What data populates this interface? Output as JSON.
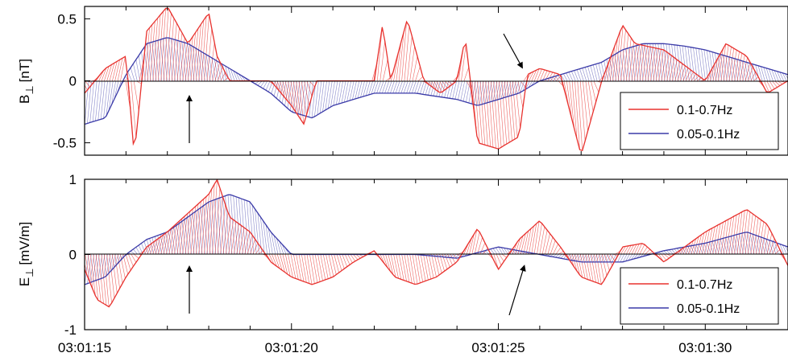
{
  "chart_data": [
    {
      "type": "line",
      "panel": "top",
      "ylabel_main": "B",
      "ylabel_sub": "⊥",
      "ylabel_unit": "[nT]",
      "ylim": [
        -0.6,
        0.6
      ],
      "yticks": [
        "0.5",
        "0",
        "-0.5"
      ],
      "ytick_values": [
        0.5,
        0,
        -0.5
      ],
      "xlim": [
        15,
        32
      ],
      "grid": false,
      "legend_position": "bottom-right",
      "series": [
        {
          "name": "0.1-0.7Hz",
          "color": "#e8322e",
          "x": [
            15.0,
            15.5,
            16.0,
            16.2,
            16.5,
            17.0,
            17.5,
            18.0,
            18.2,
            18.5,
            19.0,
            19.5,
            20.0,
            20.3,
            20.6,
            21.0,
            21.5,
            22.0,
            22.2,
            22.4,
            22.8,
            23.2,
            23.6,
            24.0,
            24.2,
            24.5,
            25.0,
            25.5,
            25.7,
            26.0,
            26.5,
            27.0,
            27.5,
            28.0,
            28.3,
            29.0,
            30.0,
            30.5,
            31.0,
            31.5,
            32.0
          ],
          "values": [
            -0.1,
            0.1,
            0.2,
            -0.6,
            0.4,
            0.6,
            0.3,
            0.55,
            0.2,
            0.0,
            0.0,
            0.0,
            -0.2,
            -0.35,
            0.0,
            0.0,
            0.0,
            0.0,
            0.45,
            0.0,
            0.5,
            0.0,
            -0.1,
            0.0,
            0.35,
            -0.5,
            -0.55,
            -0.45,
            0.05,
            0.1,
            0.05,
            -0.6,
            0.0,
            0.45,
            0.3,
            0.25,
            0.0,
            0.3,
            0.2,
            -0.1,
            0.0
          ]
        },
        {
          "name": "0.05-0.1Hz",
          "color": "#3a3aa8",
          "x": [
            15.0,
            15.5,
            16.0,
            16.5,
            17.0,
            17.5,
            18.0,
            18.5,
            19.0,
            19.5,
            20.0,
            20.5,
            21.0,
            22.0,
            23.0,
            24.0,
            24.5,
            25.0,
            25.5,
            26.0,
            26.5,
            27.0,
            27.5,
            28.0,
            28.5,
            29.0,
            29.5,
            30.0,
            30.5,
            31.0,
            31.5,
            32.0
          ],
          "values": [
            -0.35,
            -0.3,
            0.05,
            0.3,
            0.35,
            0.3,
            0.2,
            0.1,
            0.0,
            -0.1,
            -0.25,
            -0.3,
            -0.2,
            -0.1,
            -0.1,
            -0.15,
            -0.2,
            -0.15,
            -0.1,
            0.0,
            0.05,
            0.1,
            0.15,
            0.25,
            0.3,
            0.3,
            0.28,
            0.25,
            0.2,
            0.15,
            0.1,
            0.05
          ]
        }
      ]
    },
    {
      "type": "line",
      "panel": "bottom",
      "ylabel_main": "E",
      "ylabel_sub": "⊥",
      "ylabel_unit": "[mV/m]",
      "ylim": [
        -1,
        1
      ],
      "yticks": [
        "1",
        "0",
        "-1"
      ],
      "ytick_values": [
        1,
        0,
        -1
      ],
      "xlim": [
        15,
        32
      ],
      "xticks": [
        "03:01:15",
        "03:01:20",
        "03:01:25",
        "03:01:30"
      ],
      "xtick_values": [
        15,
        20,
        25,
        30
      ],
      "grid": false,
      "legend_position": "bottom-right",
      "series": [
        {
          "name": "0.1-0.7Hz",
          "color": "#e8322e",
          "x": [
            15.0,
            15.3,
            15.6,
            16.0,
            16.5,
            17.0,
            17.5,
            18.0,
            18.2,
            18.5,
            19.0,
            19.5,
            20.0,
            20.5,
            21.0,
            21.5,
            22.0,
            22.5,
            23.0,
            23.5,
            24.0,
            24.5,
            25.0,
            25.5,
            26.0,
            26.5,
            27.0,
            27.5,
            28.0,
            28.5,
            29.0,
            30.0,
            31.0,
            31.5,
            32.0
          ],
          "values": [
            -0.2,
            -0.6,
            -0.7,
            -0.3,
            0.1,
            0.3,
            0.55,
            0.8,
            1.0,
            0.5,
            0.3,
            -0.1,
            -0.3,
            -0.4,
            -0.3,
            -0.1,
            0.05,
            -0.3,
            -0.4,
            -0.3,
            -0.1,
            0.35,
            -0.2,
            0.2,
            0.45,
            0.1,
            -0.3,
            -0.4,
            0.1,
            0.15,
            -0.1,
            0.3,
            0.6,
            0.4,
            -0.15
          ]
        },
        {
          "name": "0.05-0.1Hz",
          "color": "#3a3aa8",
          "x": [
            15.0,
            15.5,
            16.0,
            16.5,
            17.0,
            17.5,
            18.0,
            18.5,
            19.0,
            19.5,
            20.0,
            21.0,
            22.0,
            23.0,
            24.0,
            25.0,
            25.5,
            26.0,
            27.0,
            28.0,
            29.0,
            30.0,
            31.0,
            32.0
          ],
          "values": [
            -0.4,
            -0.3,
            0.0,
            0.2,
            0.3,
            0.5,
            0.7,
            0.8,
            0.7,
            0.3,
            0.0,
            0.0,
            0.0,
            0.0,
            -0.05,
            0.1,
            0.05,
            0.0,
            -0.1,
            -0.1,
            0.05,
            0.15,
            0.3,
            0.1
          ]
        }
      ]
    }
  ],
  "annotations": {
    "arrow_count": 4
  }
}
